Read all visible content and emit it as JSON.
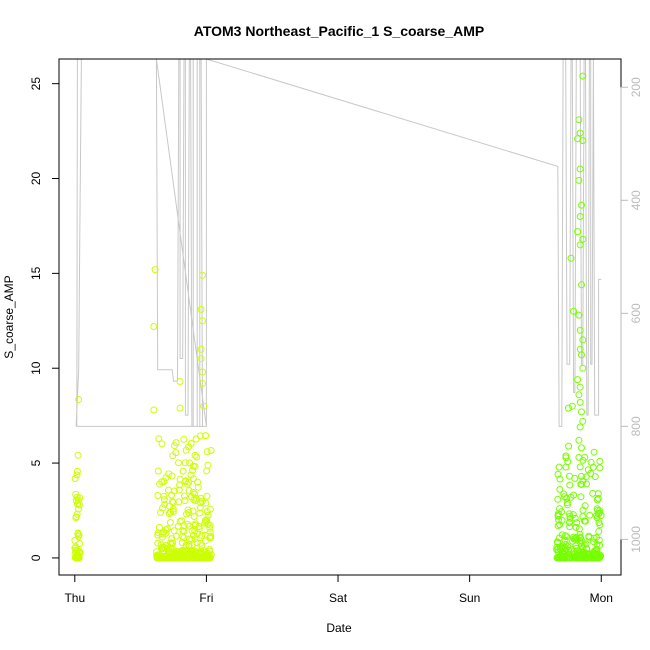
{
  "chart_data": {
    "type": "scatter",
    "title": "ATOM3 Northeast_Pacific_1 S_coarse_AMP",
    "xlabel": "Date",
    "ylabel": "S_coarse_AMP",
    "x_ticks": [
      {
        "label": "Thu",
        "day": 0
      },
      {
        "label": "Fri",
        "day": 1
      },
      {
        "label": "Sat",
        "day": 2
      },
      {
        "label": "Sun",
        "day": 3
      },
      {
        "label": "Mon",
        "day": 4
      }
    ],
    "xlim": [
      -0.12,
      4.15
    ],
    "ylim": [
      -0.9,
      26.3
    ],
    "y_ticks": [
      0,
      5,
      10,
      15,
      20,
      25
    ],
    "right_axis": {
      "ylim": [
        1063,
        150
      ],
      "ticks": [
        200,
        400,
        600,
        800,
        1000
      ],
      "color": "#bbbbbb"
    },
    "colors": {
      "pressure_line": "#c8c8c8",
      "points_early": "#ccff00",
      "points_late": "#77ff00"
    },
    "pressure_trace": [
      [
        0.01,
        800
      ],
      [
        0.03,
        700
      ],
      [
        0.04,
        400
      ],
      [
        0.05,
        150
      ],
      [
        0.05,
        150
      ],
      [
        0.02,
        150
      ],
      [
        0.015,
        800
      ],
      [
        1.0,
        800
      ],
      [
        0.62,
        150
      ],
      [
        0.62,
        150
      ],
      [
        0.63,
        700
      ],
      [
        0.74,
        700
      ],
      [
        0.75,
        720
      ],
      [
        0.78,
        720
      ],
      [
        0.79,
        150
      ],
      [
        0.8,
        150
      ],
      [
        0.8,
        680
      ],
      [
        0.82,
        680
      ],
      [
        0.83,
        150
      ],
      [
        0.84,
        150
      ],
      [
        0.84,
        780
      ],
      [
        0.86,
        780
      ],
      [
        0.87,
        150
      ],
      [
        0.88,
        150
      ],
      [
        0.89,
        800
      ],
      [
        0.9,
        800
      ],
      [
        0.9,
        150
      ],
      [
        0.93,
        150
      ],
      [
        0.93,
        800
      ],
      [
        0.95,
        800
      ],
      [
        0.95,
        150
      ],
      [
        0.96,
        150
      ],
      [
        0.97,
        800
      ],
      [
        1.0,
        800
      ],
      [
        1.0,
        150
      ],
      [
        3.67,
        340
      ],
      [
        3.67,
        340
      ],
      [
        3.68,
        800
      ],
      [
        3.7,
        800
      ],
      [
        3.71,
        150
      ],
      [
        3.73,
        150
      ],
      [
        3.74,
        690
      ],
      [
        3.76,
        690
      ],
      [
        3.77,
        150
      ],
      [
        3.78,
        150
      ],
      [
        3.79,
        740
      ],
      [
        3.8,
        740
      ],
      [
        3.81,
        150
      ],
      [
        3.84,
        150
      ],
      [
        3.85,
        690
      ],
      [
        3.86,
        690
      ],
      [
        3.87,
        150
      ],
      [
        3.88,
        150
      ],
      [
        3.89,
        780
      ],
      [
        3.9,
        780
      ],
      [
        3.91,
        150
      ],
      [
        3.92,
        150
      ],
      [
        3.92,
        690
      ],
      [
        3.93,
        690
      ],
      [
        3.94,
        150
      ],
      [
        3.94,
        150
      ],
      [
        3.95,
        780
      ],
      [
        3.98,
        780
      ],
      [
        3.98,
        540
      ],
      [
        3.99,
        540
      ],
      [
        4.0,
        540
      ]
    ],
    "clusters": [
      {
        "x0": 0.0,
        "x1": 0.04,
        "n": 55,
        "ymax": 5.5,
        "color": "#ccff00"
      },
      {
        "x0": 0.62,
        "x1": 1.04,
        "n": 340,
        "ymax": 6.5,
        "color": "#ccff00"
      },
      {
        "x0": 3.66,
        "x1": 4.0,
        "n": 260,
        "ymax": 6,
        "color": "#77ff00"
      }
    ],
    "outliers": [
      [
        0.03,
        8.35
      ],
      [
        0.61,
        15.2
      ],
      [
        0.6,
        12.2
      ],
      [
        0.6,
        7.8
      ],
      [
        0.8,
        9.3
      ],
      [
        0.97,
        14.9
      ],
      [
        0.96,
        13.1
      ],
      [
        0.97,
        12.5
      ],
      [
        0.96,
        11
      ],
      [
        0.96,
        10.5
      ],
      [
        0.97,
        9.8
      ],
      [
        0.97,
        9.2
      ],
      [
        0.98,
        8
      ],
      [
        0.8,
        7.9
      ],
      [
        3.75,
        7.9
      ],
      [
        3.78,
        8
      ],
      [
        3.79,
        13
      ],
      [
        3.77,
        15.8
      ],
      [
        3.86,
        25.4
      ],
      [
        3.83,
        23.1
      ],
      [
        3.84,
        22.4
      ],
      [
        3.82,
        22.1
      ],
      [
        3.86,
        22
      ],
      [
        3.84,
        20.5
      ],
      [
        3.83,
        19.9
      ],
      [
        3.85,
        18.6
      ],
      [
        3.84,
        18
      ],
      [
        3.82,
        17.2
      ],
      [
        3.86,
        16.8
      ],
      [
        3.84,
        16.5
      ],
      [
        3.85,
        14.4
      ],
      [
        3.83,
        12.8
      ],
      [
        3.84,
        12
      ],
      [
        3.86,
        11.5
      ],
      [
        3.84,
        11
      ],
      [
        3.85,
        10.7
      ],
      [
        3.86,
        10
      ],
      [
        3.82,
        9.4
      ],
      [
        3.84,
        9
      ],
      [
        3.83,
        8.6
      ],
      [
        3.84,
        8.2
      ],
      [
        3.85,
        7.7
      ],
      [
        3.86,
        7.2
      ],
      [
        3.84,
        6.9
      ],
      [
        3.83,
        6.2
      ],
      [
        3.85,
        5.8
      ],
      [
        3.83,
        5.3
      ],
      [
        3.84,
        4.8
      ],
      [
        3.85,
        4.3
      ]
    ]
  }
}
